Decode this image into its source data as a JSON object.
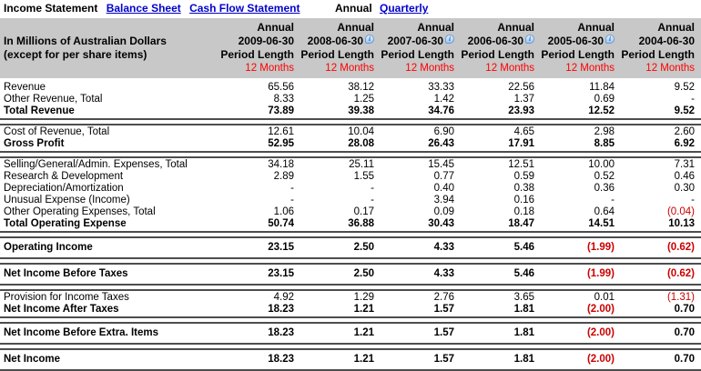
{
  "nav": {
    "tabs": [
      {
        "label": "Income Statement",
        "active": true
      },
      {
        "label": "Balance Sheet",
        "active": false
      },
      {
        "label": "Cash Flow Statement",
        "active": false
      }
    ],
    "period_toggle": [
      {
        "label": "Annual",
        "active": true
      },
      {
        "label": "Quarterly",
        "active": false
      }
    ]
  },
  "colors": {
    "header_bg": "#c8c8c8",
    "link_blue": "#0000cc",
    "months_red": "#ff0000",
    "negative_red": "#cc0000",
    "section_border": "#4d4d4d"
  },
  "table": {
    "unit_label_line1": "In Millions of Australian Dollars",
    "unit_label_line2": "(except for per share items)",
    "info_icon_glyph": "i",
    "columns": [
      {
        "period": "Annual",
        "date": "2009-06-30",
        "period_length_label": "Period Length",
        "months": "12 Months",
        "has_info_icon": false
      },
      {
        "period": "Annual",
        "date": "2008-06-30",
        "period_length_label": "Period Length",
        "months": "12 Months",
        "has_info_icon": true
      },
      {
        "period": "Annual",
        "date": "2007-06-30",
        "period_length_label": "Period Length",
        "months": "12 Months",
        "has_info_icon": true
      },
      {
        "period": "Annual",
        "date": "2006-06-30",
        "period_length_label": "Period Length",
        "months": "12 Months",
        "has_info_icon": true
      },
      {
        "period": "Annual",
        "date": "2005-06-30",
        "period_length_label": "Period Length",
        "months": "12 Months",
        "has_info_icon": true
      },
      {
        "period": "Annual",
        "date": "2004-06-30",
        "period_length_label": "Period Length",
        "months": "12 Months",
        "has_info_icon": false
      }
    ],
    "sections": [
      {
        "rows": [
          {
            "label": "Revenue",
            "emphasis": false,
            "values": [
              "65.56",
              "38.12",
              "33.33",
              "22.56",
              "11.84",
              "9.52"
            ]
          },
          {
            "label": "Other Revenue, Total",
            "emphasis": false,
            "values": [
              "8.33",
              "1.25",
              "1.42",
              "1.37",
              "0.69",
              "-"
            ]
          },
          {
            "label": "Total Revenue",
            "emphasis": true,
            "values": [
              "73.89",
              "39.38",
              "34.76",
              "23.93",
              "12.52",
              "9.52"
            ]
          }
        ]
      },
      {
        "rows": [
          {
            "label": "Cost of Revenue, Total",
            "emphasis": false,
            "values": [
              "12.61",
              "10.04",
              "6.90",
              "4.65",
              "2.98",
              "2.60"
            ]
          },
          {
            "label": "Gross Profit",
            "emphasis": true,
            "values": [
              "52.95",
              "28.08",
              "26.43",
              "17.91",
              "8.85",
              "6.92"
            ]
          }
        ]
      },
      {
        "rows": [
          {
            "label": "Selling/General/Admin. Expenses, Total",
            "emphasis": false,
            "values": [
              "34.18",
              "25.11",
              "15.45",
              "12.51",
              "10.00",
              "7.31"
            ]
          },
          {
            "label": "Research & Development",
            "emphasis": false,
            "values": [
              "2.89",
              "1.55",
              "0.77",
              "0.59",
              "0.52",
              "0.46"
            ]
          },
          {
            "label": "Depreciation/Amortization",
            "emphasis": false,
            "values": [
              "-",
              "-",
              "0.40",
              "0.38",
              "0.36",
              "0.30"
            ]
          },
          {
            "label": "Unusual Expense (Income)",
            "emphasis": false,
            "values": [
              "-",
              "-",
              "3.94",
              "0.16",
              "-",
              "-"
            ]
          },
          {
            "label": "Other Operating Expenses, Total",
            "emphasis": false,
            "values": [
              "1.06",
              "0.17",
              "0.09",
              "0.18",
              "0.64",
              "(0.04)"
            ]
          },
          {
            "label": "Total Operating Expense",
            "emphasis": true,
            "values": [
              "50.74",
              "36.88",
              "30.43",
              "18.47",
              "14.51",
              "10.13"
            ]
          }
        ]
      },
      {
        "rows": [
          {
            "label": "Operating Income",
            "emphasis": true,
            "values": [
              "23.15",
              "2.50",
              "4.33",
              "5.46",
              "(1.99)",
              "(0.62)"
            ]
          }
        ]
      },
      {
        "rows": [
          {
            "label": "Net Income Before Taxes",
            "emphasis": true,
            "values": [
              "23.15",
              "2.50",
              "4.33",
              "5.46",
              "(1.99)",
              "(0.62)"
            ]
          }
        ]
      },
      {
        "rows": [
          {
            "label": "Provision for Income Taxes",
            "emphasis": false,
            "values": [
              "4.92",
              "1.29",
              "2.76",
              "3.65",
              "0.01",
              "(1.31)"
            ]
          },
          {
            "label": "Net Income After Taxes",
            "emphasis": true,
            "values": [
              "18.23",
              "1.21",
              "1.57",
              "1.81",
              "(2.00)",
              "0.70"
            ]
          }
        ]
      },
      {
        "rows": [
          {
            "label": "Net Income Before Extra. Items",
            "emphasis": true,
            "values": [
              "18.23",
              "1.21",
              "1.57",
              "1.81",
              "(2.00)",
              "0.70"
            ]
          }
        ]
      },
      {
        "rows": [
          {
            "label": "Net Income",
            "emphasis": true,
            "values": [
              "18.23",
              "1.21",
              "1.57",
              "1.81",
              "(2.00)",
              "0.70"
            ]
          }
        ]
      }
    ]
  }
}
